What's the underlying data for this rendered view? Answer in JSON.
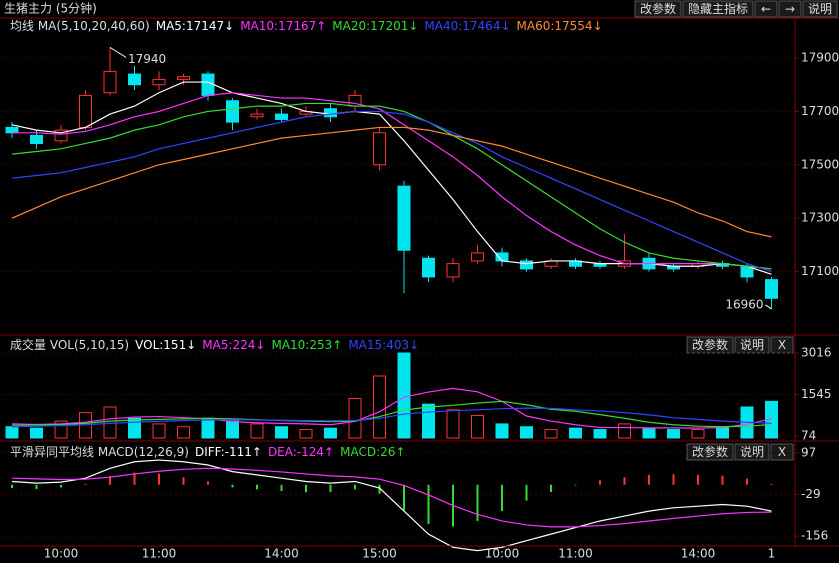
{
  "header": {
    "title": "生猪主力 (5分钟)",
    "buttons": [
      "改参数",
      "隐藏主指标",
      "←",
      "→",
      "说明"
    ]
  },
  "chart_data": [
    {
      "type": "candlestick",
      "title": "均线 MA(5,10,20,40,60)",
      "categories": [
        null,
        null,
        "10:00",
        null,
        null,
        null,
        "11:00",
        null,
        null,
        null,
        null,
        "14:00",
        null,
        null,
        null,
        "15:00",
        null,
        null,
        null,
        null,
        "10:00",
        null,
        null,
        "11:00",
        null,
        null,
        null,
        null,
        "14:00",
        null,
        null,
        "1"
      ],
      "open": [
        17640,
        17610,
        17590,
        17640,
        17770,
        17840,
        17800,
        17820,
        17840,
        17740,
        17680,
        17690,
        17690,
        17710,
        17720,
        17500,
        17420,
        17150,
        17080,
        17140,
        17170,
        17140,
        17120,
        17140,
        17130,
        17120,
        17150,
        17120,
        17120,
        17130,
        17120,
        17070
      ],
      "high": [
        17660,
        17630,
        17650,
        17780,
        17940,
        17870,
        17850,
        17840,
        17850,
        17750,
        17710,
        17710,
        17720,
        17730,
        17780,
        17640,
        17440,
        17160,
        17150,
        17200,
        17190,
        17150,
        17150,
        17150,
        17140,
        17240,
        17170,
        17130,
        17140,
        17140,
        17130,
        17080
      ],
      "low": [
        17600,
        17560,
        17580,
        17630,
        17760,
        17780,
        17780,
        17800,
        17740,
        17630,
        17670,
        17660,
        17680,
        17660,
        17700,
        17480,
        17020,
        17060,
        17060,
        17130,
        17120,
        17100,
        17110,
        17110,
        17110,
        17110,
        17100,
        17100,
        17110,
        17110,
        17060,
        16960
      ],
      "close": [
        17620,
        17580,
        17630,
        17760,
        17850,
        17800,
        17820,
        17830,
        17760,
        17660,
        17690,
        17670,
        17700,
        17680,
        17760,
        17620,
        17180,
        17080,
        17130,
        17170,
        17140,
        17110,
        17140,
        17120,
        17120,
        17140,
        17110,
        17110,
        17130,
        17120,
        17080,
        17000
      ],
      "up_color": "#ff3232",
      "down_color": "#00e5ee",
      "series": [
        {
          "name": "MA5:17147↓",
          "color": "#ffffff",
          "values": [
            17650,
            17630,
            17620,
            17640,
            17690,
            17720,
            17770,
            17810,
            17810,
            17770,
            17750,
            17730,
            17700,
            17690,
            17700,
            17690,
            17590,
            17480,
            17370,
            17250,
            17140,
            17130,
            17140,
            17140,
            17130,
            17130,
            17130,
            17120,
            17120,
            17130,
            17120,
            17090
          ]
        },
        {
          "name": "MA10:17167↑",
          "color": "#ff33ff",
          "values": [
            17620,
            17620,
            17615,
            17625,
            17650,
            17680,
            17700,
            17730,
            17760,
            17770,
            17760,
            17750,
            17750,
            17740,
            17730,
            17710,
            17650,
            17590,
            17530,
            17460,
            17380,
            17310,
            17250,
            17200,
            17160,
            17130,
            17130,
            17130,
            17130,
            17130,
            17120,
            17110
          ]
        },
        {
          "name": "MA20:17201↓",
          "color": "#33dd33",
          "values": [
            17540,
            17550,
            17560,
            17580,
            17600,
            17630,
            17650,
            17680,
            17700,
            17710,
            17720,
            17720,
            17730,
            17730,
            17720,
            17720,
            17700,
            17660,
            17610,
            17560,
            17500,
            17440,
            17380,
            17320,
            17260,
            17210,
            17170,
            17150,
            17140,
            17130,
            17120,
            17110
          ]
        },
        {
          "name": "MA40:17464↓",
          "color": "#3344ff",
          "values": [
            17450,
            17460,
            17470,
            17490,
            17510,
            17530,
            17560,
            17580,
            17600,
            17620,
            17640,
            17660,
            17680,
            17690,
            17700,
            17700,
            17690,
            17660,
            17620,
            17580,
            17530,
            17490,
            17450,
            17410,
            17370,
            17330,
            17290,
            17250,
            17210,
            17170,
            17130,
            17100
          ]
        },
        {
          "name": "MA60:17554↓",
          "color": "#ff8833",
          "values": [
            17300,
            17340,
            17380,
            17410,
            17440,
            17470,
            17500,
            17520,
            17540,
            17560,
            17580,
            17600,
            17610,
            17620,
            17630,
            17640,
            17640,
            17630,
            17610,
            17590,
            17570,
            17540,
            17510,
            17480,
            17450,
            17420,
            17390,
            17360,
            17320,
            17290,
            17250,
            17230
          ]
        }
      ],
      "annotations": [
        "17940",
        "16960"
      ],
      "ylim": [
        16870,
        18050
      ],
      "yticks": [
        17100,
        17300,
        17500,
        17700,
        17900
      ]
    },
    {
      "type": "volume",
      "title": "成交量 VOL(5,10,15)",
      "buttons": [
        "改参数",
        "说明",
        "X"
      ],
      "value_name": "VOL:151↓",
      "values": [
        400,
        350,
        600,
        900,
        1100,
        700,
        500,
        400,
        700,
        600,
        500,
        400,
        300,
        350,
        1400,
        2200,
        3016,
        1200,
        1000,
        800,
        500,
        400,
        300,
        350,
        300,
        500,
        350,
        300,
        300,
        400,
        1100,
        1300
      ],
      "series": [
        {
          "name": "MA5:224↓",
          "color": "#ff33ff",
          "values": [
            500,
            480,
            500,
            560,
            680,
            740,
            760,
            720,
            680,
            580,
            540,
            520,
            500,
            470,
            590,
            930,
            1450,
            1630,
            1760,
            1640,
            1300,
            780,
            600,
            470,
            370,
            370,
            360,
            360,
            350,
            370,
            490,
            680
          ]
        },
        {
          "name": "MA10:253↑",
          "color": "#33dd33",
          "values": [
            450,
            460,
            480,
            520,
            600,
            640,
            660,
            680,
            700,
            680,
            650,
            620,
            600,
            580,
            600,
            760,
            990,
            1100,
            1160,
            1240,
            1300,
            1180,
            1020,
            950,
            830,
            700,
            560,
            470,
            420,
            400,
            420,
            480
          ]
        },
        {
          "name": "MA15:403↓",
          "color": "#3344ff",
          "values": [
            400,
            420,
            440,
            470,
            520,
            560,
            590,
            620,
            640,
            650,
            640,
            630,
            620,
            610,
            620,
            700,
            850,
            920,
            970,
            1000,
            1040,
            1060,
            1050,
            1000,
            960,
            900,
            820,
            720,
            660,
            600,
            560,
            520
          ]
        }
      ],
      "ylim": [
        0,
        3300
      ],
      "yticks": [
        74,
        1545,
        3016
      ]
    },
    {
      "type": "macd",
      "title": "平滑异同平均线 MACD(12,26,9)",
      "buttons": [
        "改参数",
        "说明",
        "X"
      ],
      "series": [
        {
          "name": "DIFF:-111↑",
          "color": "#ffffff",
          "values": [
            10,
            5,
            8,
            20,
            50,
            70,
            75,
            70,
            60,
            40,
            30,
            20,
            10,
            5,
            10,
            -10,
            -80,
            -150,
            -190,
            -200,
            -190,
            -170,
            -150,
            -130,
            -110,
            -95,
            -80,
            -70,
            -65,
            -60,
            -65,
            -80
          ]
        },
        {
          "name": "DEA:-124↑",
          "color": "#ff33ff",
          "values": [
            20,
            18,
            16,
            17,
            23,
            33,
            41,
            47,
            50,
            48,
            44,
            39,
            33,
            27,
            24,
            17,
            -2,
            -31,
            -63,
            -90,
            -110,
            -122,
            -128,
            -128,
            -124,
            -118,
            -110,
            -102,
            -95,
            -88,
            -84,
            -83
          ]
        }
      ],
      "histogram": {
        "name": "MACD:26↑",
        "up_color": "#ff3232",
        "down_color": "#33dd33",
        "values": [
          -10,
          -13,
          -8,
          3,
          27,
          37,
          34,
          23,
          10,
          -8,
          -14,
          -19,
          -23,
          -22,
          -14,
          -27,
          -78,
          -119,
          -127,
          -110,
          -80,
          -48,
          -22,
          -2,
          14,
          23,
          30,
          32,
          30,
          28,
          19,
          3
        ]
      },
      "ylim": [
        -183,
        133
      ],
      "yticks": [
        -156,
        -29,
        97
      ]
    }
  ]
}
